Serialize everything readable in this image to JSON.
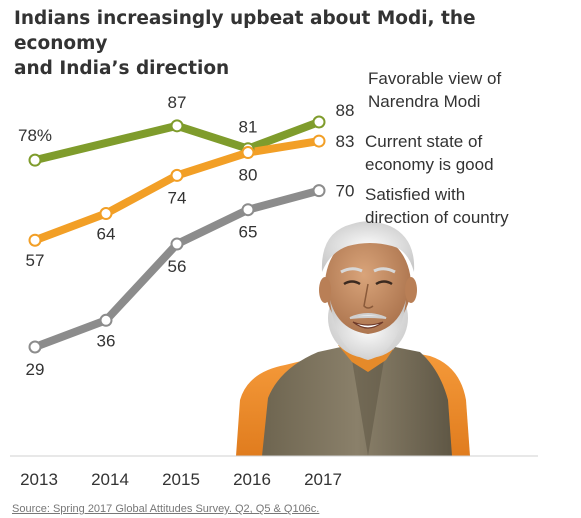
{
  "title_line1": "Indians increasingly upbeat about Modi, the economy",
  "title_line2": "and India’s direction",
  "source": "Source: Spring 2017 Global Attitudes Survey. Q2, Q5 & Q106c.",
  "colors": {
    "modi": "#7f9c2c",
    "economy": "#f29f26",
    "direction": "#8c8c8c",
    "text": "#333333"
  },
  "photo": {
    "icon": "portrait-photo"
  },
  "chart_data": {
    "type": "line",
    "title": "Indians increasingly upbeat about Modi, the economy and India’s direction",
    "x": [
      "2013",
      "2014",
      "2015",
      "2016",
      "2017"
    ],
    "ylim": [
      20,
      95
    ],
    "grid": false,
    "legend": "right, end of lines",
    "series": [
      {
        "id": "modi",
        "label_lines": [
          "Favorable view of",
          "Narendra Modi"
        ],
        "color": "#7f9c2c",
        "x": [
          "2013",
          "2015",
          "2016",
          "2017"
        ],
        "values": [
          78,
          87,
          81,
          88
        ],
        "data_labels": [
          "78%",
          "87",
          "81",
          "88"
        ]
      },
      {
        "id": "economy",
        "label_lines": [
          "Current state of",
          "economy is good"
        ],
        "color": "#f29f26",
        "x": [
          "2013",
          "2014",
          "2015",
          "2016",
          "2017"
        ],
        "values": [
          57,
          64,
          74,
          80,
          83
        ],
        "data_labels": [
          "57",
          "64",
          "74",
          "80",
          "83"
        ]
      },
      {
        "id": "direction",
        "label_lines": [
          "Satisfied with",
          "direction of country"
        ],
        "color": "#8c8c8c",
        "x": [
          "2013",
          "2014",
          "2015",
          "2016",
          "2017"
        ],
        "values": [
          29,
          36,
          56,
          65,
          70
        ],
        "data_labels": [
          "29",
          "36",
          "56",
          "65",
          "70"
        ]
      }
    ]
  }
}
